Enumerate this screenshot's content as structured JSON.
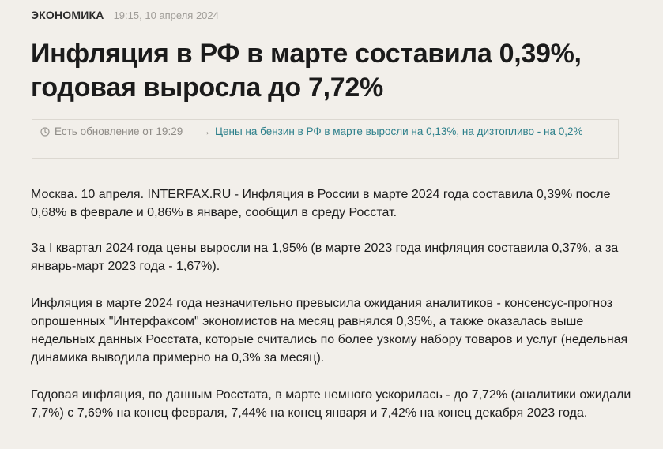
{
  "article": {
    "section": "ЭКОНОМИКА",
    "date": "19:15, 10 апреля 2024",
    "title": "Инфляция в РФ в марте составила 0,39%, годовая выросла до 7,72%",
    "update": {
      "icon": "clock-icon",
      "label": "Есть обновление от 19:29",
      "arrow": "→",
      "link_text": "Цены на бензин в РФ в марте выросли на 0,13%, на дизтопливо - на 0,2%"
    },
    "paragraphs": [
      "Москва. 10 апреля. INTERFAX.RU - Инфляция в России в марте 2024 года составила 0,39% после 0,68% в феврале и 0,86% в январе, сообщил в среду Росстат.",
      "За I квартал 2024 года цены выросли на 1,95% (в марте 2023 года инфляция составила 0,37%, а за январь-март 2023 года - 1,67%).",
      "Инфляция в марте 2024 года незначительно превысила ожидания аналитиков - консенсус-прогноз опрошенных \"Интерфаксом\" экономистов на месяц равнялся 0,35%, а также оказалась выше недельных данных Росстата, которые считались по более узкому набору товаров и услуг (недельная динамика выводила примерно на 0,3% за месяц).",
      "Годовая инфляция, по данным Росстата, в марте немного ускорилась - до 7,72% (аналитики ожидали 7,7%) с 7,69% на конец февраля, 7,44% на конец января и 7,42% на конец декабря 2023 года."
    ]
  },
  "colors": {
    "background": "#f2efea",
    "text": "#1d1d1d",
    "muted": "#a09d98",
    "link": "#2c7f8a",
    "border": "#dcd8d1"
  }
}
